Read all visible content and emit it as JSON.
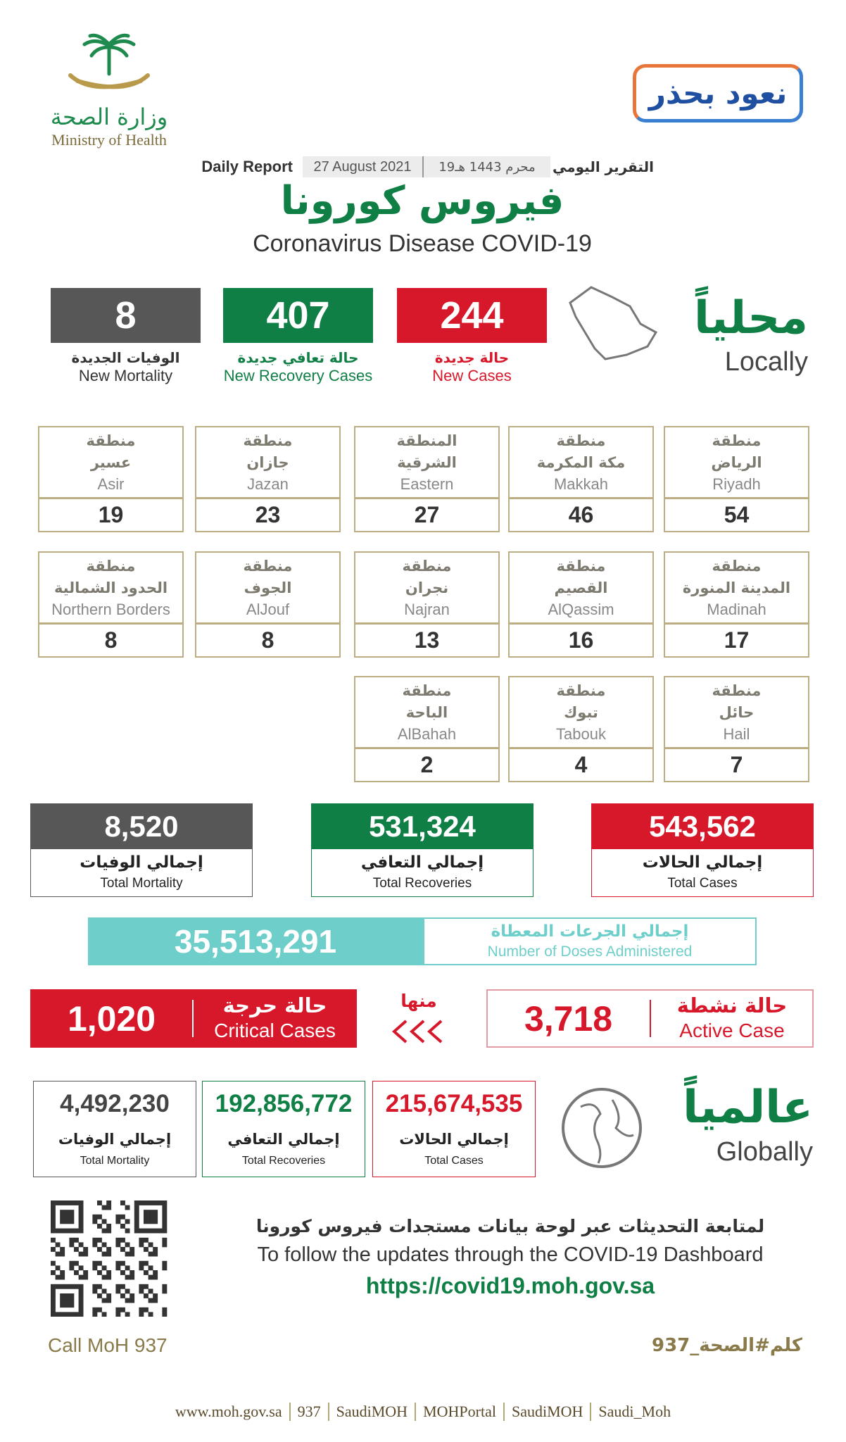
{
  "header": {
    "logo_ar": "وزارة الصحة",
    "logo_en": "Ministry of Health",
    "campaign": "نعود بحذر",
    "report_en": "Daily Report",
    "date_en": "27 August 2021",
    "date_hijri": "19محرم 1443 هـ",
    "report_ar": "التقرير اليومي",
    "title_ar": "فيروس كورونا",
    "title_en": "Coronavirus Disease COVID-19"
  },
  "local": {
    "title_ar": "محلياً",
    "title_en": "Locally",
    "stats": [
      {
        "value": "244",
        "label_ar": "حالة جديدة",
        "label_en": "New Cases"
      },
      {
        "value": "407",
        "label_ar": "حالة تعافي جديدة",
        "label_en": "New Recovery Cases"
      },
      {
        "value": "8",
        "label_ar": "الوفيات الجديدة",
        "label_en": "New Mortality"
      }
    ]
  },
  "regions": [
    {
      "prefix": "منطقة",
      "name_ar": "الرياض",
      "name_en": "Riyadh",
      "value": 54
    },
    {
      "prefix": "منطقة",
      "name_ar": "مكة المكرمة",
      "name_en": "Makkah",
      "value": 46
    },
    {
      "prefix": "المنطقة",
      "name_ar": "الشرقية",
      "name_en": "Eastern",
      "value": 27
    },
    {
      "prefix": "منطقة",
      "name_ar": "جازان",
      "name_en": "Jazan",
      "value": 23
    },
    {
      "prefix": "منطقة",
      "name_ar": "عسير",
      "name_en": "Asir",
      "value": 19
    },
    {
      "prefix": "منطقة",
      "name_ar": "المدينة المنورة",
      "name_en": "Madinah",
      "value": 17
    },
    {
      "prefix": "منطقة",
      "name_ar": "القصيم",
      "name_en": "AlQassim",
      "value": 16
    },
    {
      "prefix": "منطقة",
      "name_ar": "نجران",
      "name_en": "Najran",
      "value": 13
    },
    {
      "prefix": "منطقة",
      "name_ar": "الجوف",
      "name_en": "AlJouf",
      "value": 8
    },
    {
      "prefix": "منطقة",
      "name_ar": "الحدود الشمالية",
      "name_en": "Northern Borders",
      "value": 8
    },
    {
      "prefix": "منطقة",
      "name_ar": "حائل",
      "name_en": "Hail",
      "value": 7
    },
    {
      "prefix": "منطقة",
      "name_ar": "تبوك",
      "name_en": "Tabouk",
      "value": 4
    },
    {
      "prefix": "منطقة",
      "name_ar": "الباحة",
      "name_en": "AlBahah",
      "value": 2
    }
  ],
  "totals": [
    {
      "value": "543,562",
      "label_ar": "إجمالي الحالات",
      "label_en": "Total Cases"
    },
    {
      "value": "531,324",
      "label_ar": "إجمالي التعافي",
      "label_en": "Total Recoveries"
    },
    {
      "value": "8,520",
      "label_ar": "إجمالي الوفيات",
      "label_en": "Total Mortality"
    }
  ],
  "doses": {
    "value": "35,513,291",
    "label_ar": "إجمالي الجرعات المعطاة",
    "label_en": "Number of Doses Administered"
  },
  "active": {
    "value": "3,718",
    "label_ar": "حالة نشطة",
    "label_en": "Active Case"
  },
  "of_which": "منها",
  "critical": {
    "value": "1,020",
    "label_ar": "حالة حرجة",
    "label_en": "Critical Cases"
  },
  "global": {
    "title_ar": "عالمياً",
    "title_en": "Globally",
    "stats": [
      {
        "value": "215,674,535",
        "label_ar": "إجمالي الحالات",
        "label_en": "Total Cases"
      },
      {
        "value": "192,856,772",
        "label_ar": "إجمالي التعافي",
        "label_en": "Total Recoveries"
      },
      {
        "value": "4,492,230",
        "label_ar": "إجمالي الوفيات",
        "label_en": "Total Mortality"
      }
    ]
  },
  "follow": {
    "text_ar": "لمتابعة التحديثات عبر لوحة بيانات مستجدات فيروس كورونا",
    "text_en": "To follow the updates through the COVID-19 Dashboard",
    "url": "https://covid19.moh.gov.sa"
  },
  "call": {
    "en": "Call MoH 937",
    "ar": "كلم#الصحة_937"
  },
  "footer": [
    "www.moh.gov.sa",
    "937",
    "SaudiMOH",
    "MOHPortal",
    "SaudiMOH",
    "Saudi_Moh"
  ]
}
